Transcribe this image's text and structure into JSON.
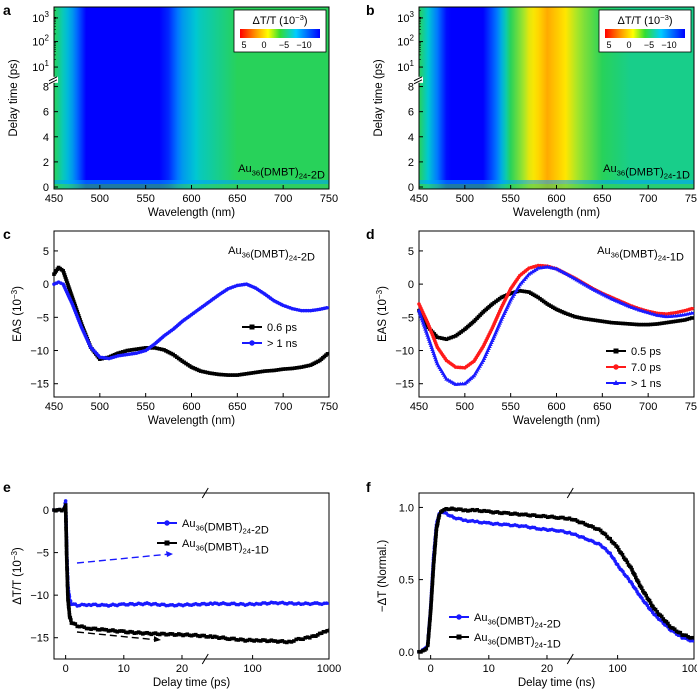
{
  "figure": {
    "panels": [
      "a",
      "b",
      "c",
      "d",
      "e",
      "f"
    ]
  },
  "chart_data": [
    {
      "panel": "a",
      "type": "heatmap",
      "xlabel": "Wavelength (nm)",
      "ylabel": "Delay time (ps)",
      "xlim": [
        450,
        750
      ],
      "xticks": [
        "450",
        "500",
        "550",
        "600",
        "650",
        "700",
        "750"
      ],
      "yticks_linear": [
        "0",
        "2",
        "4",
        "6",
        "8"
      ],
      "yticks_log": [
        "10",
        "10",
        "10"
      ],
      "yticks_log_exp": [
        "1",
        "2",
        "3"
      ],
      "sample_label": "Au36(DMBT)24-2D",
      "colorbar": {
        "title": "ΔT/T (10",
        "title_exp": "−3",
        "ticks": [
          "5",
          "0",
          "−5",
          "−10"
        ]
      },
      "profile_wavelength": [
        450,
        470,
        485,
        500,
        520,
        540,
        560,
        575,
        590,
        610,
        630,
        650,
        680,
        720,
        750
      ],
      "profile_value": [
        -3,
        -7,
        -11,
        -12,
        -12,
        -12,
        -11.5,
        -10,
        -7,
        -5,
        -4,
        -3,
        -3,
        -3,
        -3
      ]
    },
    {
      "panel": "b",
      "type": "heatmap",
      "xlabel": "Wavelength (nm)",
      "ylabel": "Delay time (ps)",
      "xlim": [
        450,
        750
      ],
      "xticks": [
        "450",
        "500",
        "550",
        "600",
        "650",
        "700",
        "750"
      ],
      "yticks_linear": [
        "0",
        "2",
        "4",
        "6",
        "8"
      ],
      "yticks_log": [
        "10",
        "10",
        "10"
      ],
      "yticks_log_exp": [
        "1",
        "2",
        "3"
      ],
      "sample_label": "Au36(DMBT)24-1D",
      "colorbar": {
        "title": "ΔT/T (10",
        "title_exp": "−3",
        "ticks": [
          "5",
          "0",
          "−5",
          "−10"
        ]
      },
      "profile_wavelength": [
        450,
        470,
        485,
        500,
        520,
        535,
        550,
        570,
        590,
        610,
        630,
        650,
        680,
        720,
        750
      ],
      "profile_value": [
        -3,
        -8,
        -12,
        -12,
        -11,
        -8,
        -3,
        1,
        2.5,
        1.5,
        -1,
        -3,
        -4,
        -4,
        -4
      ]
    },
    {
      "panel": "c",
      "type": "line",
      "xlabel": "Wavelength (nm)",
      "ylabel": "EAS (10",
      "ylabel_exp": "−3",
      "xlim": [
        450,
        750
      ],
      "ylim": [
        -17,
        8
      ],
      "xticks": [
        "450",
        "500",
        "550",
        "600",
        "650",
        "700",
        "750"
      ],
      "yticks": [
        "5",
        "0",
        "−5",
        "−10",
        "−15"
      ],
      "annotation": "Au36(DMBT)24-2D",
      "series": [
        {
          "name": "0.6 ps",
          "color": "#000000",
          "x": [
            450,
            455,
            460,
            470,
            480,
            490,
            500,
            510,
            520,
            530,
            540,
            550,
            560,
            570,
            580,
            590,
            600,
            610,
            620,
            630,
            640,
            650,
            660,
            670,
            680,
            690,
            700,
            710,
            720,
            730,
            740,
            750
          ],
          "y": [
            1.5,
            2.5,
            2,
            -2,
            -6,
            -9.5,
            -11.3,
            -11,
            -10.4,
            -10,
            -9.8,
            -9.6,
            -9.6,
            -9.9,
            -10.6,
            -11.6,
            -12.5,
            -13.1,
            -13.4,
            -13.6,
            -13.7,
            -13.7,
            -13.5,
            -13.3,
            -13.1,
            -13,
            -12.8,
            -12.7,
            -12.5,
            -12.2,
            -11.5,
            -10.3
          ]
        },
        {
          "name": "> 1 ns",
          "color": "#1a1aff",
          "x": [
            450,
            455,
            460,
            470,
            480,
            490,
            500,
            510,
            520,
            530,
            540,
            550,
            560,
            570,
            580,
            590,
            600,
            610,
            620,
            630,
            640,
            650,
            660,
            670,
            680,
            690,
            700,
            710,
            720,
            730,
            740,
            750
          ],
          "y": [
            0,
            0.3,
            0,
            -3,
            -6.5,
            -9.5,
            -11,
            -11.2,
            -10.8,
            -10.6,
            -10.4,
            -10,
            -9,
            -7.8,
            -6.8,
            -5.6,
            -4.6,
            -3.6,
            -2.6,
            -1.6,
            -0.7,
            -0.2,
            0,
            -0.6,
            -1.5,
            -2.5,
            -3.2,
            -3.7,
            -4,
            -4,
            -3.8,
            -3.5
          ]
        }
      ]
    },
    {
      "panel": "d",
      "type": "line",
      "xlabel": "Wavelength (nm)",
      "ylabel": "EAS (10",
      "ylabel_exp": "−3",
      "xlim": [
        450,
        750
      ],
      "ylim": [
        -17,
        8
      ],
      "xticks": [
        "450",
        "500",
        "550",
        "600",
        "650",
        "700",
        "750"
      ],
      "yticks": [
        "5",
        "0",
        "−5",
        "−10",
        "−15"
      ],
      "annotation": "Au36(DMBT)24-1D",
      "series": [
        {
          "name": "0.5 ps",
          "color": "#000000",
          "x": [
            450,
            460,
            470,
            480,
            490,
            500,
            510,
            520,
            530,
            540,
            550,
            560,
            570,
            580,
            590,
            600,
            610,
            620,
            630,
            640,
            650,
            660,
            670,
            680,
            690,
            700,
            710,
            720,
            730,
            740,
            750
          ],
          "y": [
            -4,
            -6.5,
            -8,
            -8.3,
            -7.8,
            -6.8,
            -5.6,
            -4.2,
            -3,
            -2,
            -1.4,
            -1,
            -1.2,
            -2,
            -3,
            -3.8,
            -4.4,
            -4.9,
            -5.2,
            -5.4,
            -5.6,
            -5.8,
            -5.9,
            -6,
            -6.1,
            -6.1,
            -6,
            -5.8,
            -5.6,
            -5.4,
            -5
          ]
        },
        {
          "name": "7.0 ps",
          "color": "#ff1a1a",
          "x": [
            450,
            460,
            470,
            480,
            490,
            500,
            510,
            520,
            530,
            540,
            550,
            560,
            570,
            580,
            590,
            600,
            610,
            620,
            630,
            640,
            650,
            660,
            670,
            680,
            690,
            700,
            710,
            720,
            730,
            740,
            750
          ],
          "y": [
            -3,
            -6,
            -9.5,
            -11.5,
            -12.5,
            -12.6,
            -11.6,
            -9.4,
            -6.6,
            -3.5,
            -0.7,
            1.3,
            2.4,
            2.8,
            2.7,
            2.3,
            1.6,
            0.9,
            0.1,
            -0.7,
            -1.4,
            -2,
            -2.6,
            -3.2,
            -3.7,
            -4.1,
            -4.4,
            -4.5,
            -4.3,
            -4,
            -3.6
          ]
        },
        {
          "name": "> 1 ns",
          "color": "#1a1aff",
          "x": [
            450,
            460,
            470,
            480,
            490,
            500,
            510,
            520,
            530,
            540,
            550,
            560,
            570,
            580,
            590,
            600,
            610,
            620,
            630,
            640,
            650,
            660,
            670,
            680,
            690,
            700,
            710,
            720,
            730,
            740,
            750
          ],
          "y": [
            -4,
            -8,
            -12,
            -14.3,
            -15.1,
            -15,
            -13.8,
            -11.5,
            -8.5,
            -5.3,
            -2.4,
            -0.1,
            1.5,
            2.4,
            2.6,
            2.3,
            1.6,
            0.8,
            0,
            -0.8,
            -1.5,
            -2.2,
            -2.8,
            -3.4,
            -3.9,
            -4.3,
            -4.7,
            -4.9,
            -4.8,
            -4.6,
            -4.3
          ]
        }
      ]
    },
    {
      "panel": "e",
      "type": "line",
      "xlabel": "Delay time (ps)",
      "ylabel": "ΔT/T (10",
      "ylabel_exp": "−3",
      "xlim": [
        -2,
        1000
      ],
      "axis_break": 24,
      "ylim": [
        -17.5,
        2
      ],
      "xticks": [
        "0",
        "10",
        "20",
        "100",
        "1000"
      ],
      "yticks": [
        "0",
        "−5",
        "−10",
        "−15"
      ],
      "series": [
        {
          "name": "Au36(DMBT)24-2D",
          "color": "#1a1aff",
          "x": [
            -2,
            -1,
            -0.3,
            0,
            0.2,
            0.4,
            0.7,
            1,
            2,
            4,
            7,
            10,
            14,
            18,
            22,
            30,
            50,
            80,
            120,
            200,
            400,
            700,
            1000
          ],
          "y": [
            0,
            0,
            0,
            1,
            -5,
            -9,
            -10.5,
            -11,
            -11.2,
            -11.1,
            -11.2,
            -11.1,
            -11,
            -11.2,
            -11.1,
            -11,
            -11,
            -11.1,
            -11,
            -10.9,
            -11,
            -11,
            -11
          ]
        },
        {
          "name": "Au36(DMBT)24-1D",
          "color": "#000000",
          "x": [
            -2,
            -1,
            -0.3,
            0,
            0.2,
            0.4,
            0.7,
            1,
            2,
            4,
            7,
            10,
            14,
            18,
            22,
            30,
            50,
            80,
            120,
            200,
            300,
            400,
            600,
            800,
            1000
          ],
          "y": [
            0,
            0,
            0,
            0.5,
            -6,
            -10.5,
            -12.5,
            -13.2,
            -13.6,
            -13.9,
            -14.1,
            -14.3,
            -14.5,
            -14.6,
            -14.7,
            -14.9,
            -15.1,
            -15.3,
            -15.3,
            -15.4,
            -15.5,
            -15.2,
            -14.9,
            -14.5,
            -14
          ]
        }
      ]
    },
    {
      "panel": "f",
      "type": "line",
      "xlabel": "Delay time (ns)",
      "ylabel": "−ΔT (Normal.)",
      "xlim": [
        -2,
        1000
      ],
      "axis_break": 24,
      "ylim": [
        -0.05,
        1.1
      ],
      "xticks": [
        "0",
        "10",
        "20",
        "100",
        "1000"
      ],
      "yticks": [
        "0.0",
        "0.5",
        "1.0"
      ],
      "series": [
        {
          "name": "Au36(DMBT)24-2D",
          "color": "#1a1aff",
          "x": [
            -2,
            -1,
            -0.5,
            0,
            0.5,
            1,
            1.5,
            2,
            3,
            4,
            6,
            8,
            10,
            13,
            16,
            19,
            22,
            25,
            40,
            60,
            80,
            100,
            150,
            200,
            300,
            500,
            700,
            1000
          ],
          "y": [
            0,
            0.02,
            0.05,
            0.3,
            0.65,
            0.88,
            0.96,
            0.97,
            0.95,
            0.93,
            0.91,
            0.9,
            0.89,
            0.88,
            0.87,
            0.85,
            0.84,
            0.82,
            0.78,
            0.74,
            0.68,
            0.6,
            0.48,
            0.38,
            0.26,
            0.15,
            0.1,
            0.07
          ]
        },
        {
          "name": "Au36(DMBT)24-1D",
          "color": "#000000",
          "x": [
            -2,
            -1,
            -0.5,
            0,
            0.5,
            1,
            1.5,
            2,
            3,
            4,
            6,
            8,
            10,
            13,
            16,
            19,
            22,
            25,
            40,
            60,
            80,
            100,
            150,
            200,
            300,
            500,
            700,
            1000
          ],
          "y": [
            0,
            0.01,
            0.04,
            0.28,
            0.6,
            0.85,
            0.95,
            0.98,
            0.99,
            0.99,
            0.98,
            0.98,
            0.97,
            0.96,
            0.95,
            0.94,
            0.93,
            0.92,
            0.88,
            0.84,
            0.78,
            0.72,
            0.58,
            0.45,
            0.3,
            0.17,
            0.12,
            0.09
          ]
        }
      ]
    }
  ]
}
